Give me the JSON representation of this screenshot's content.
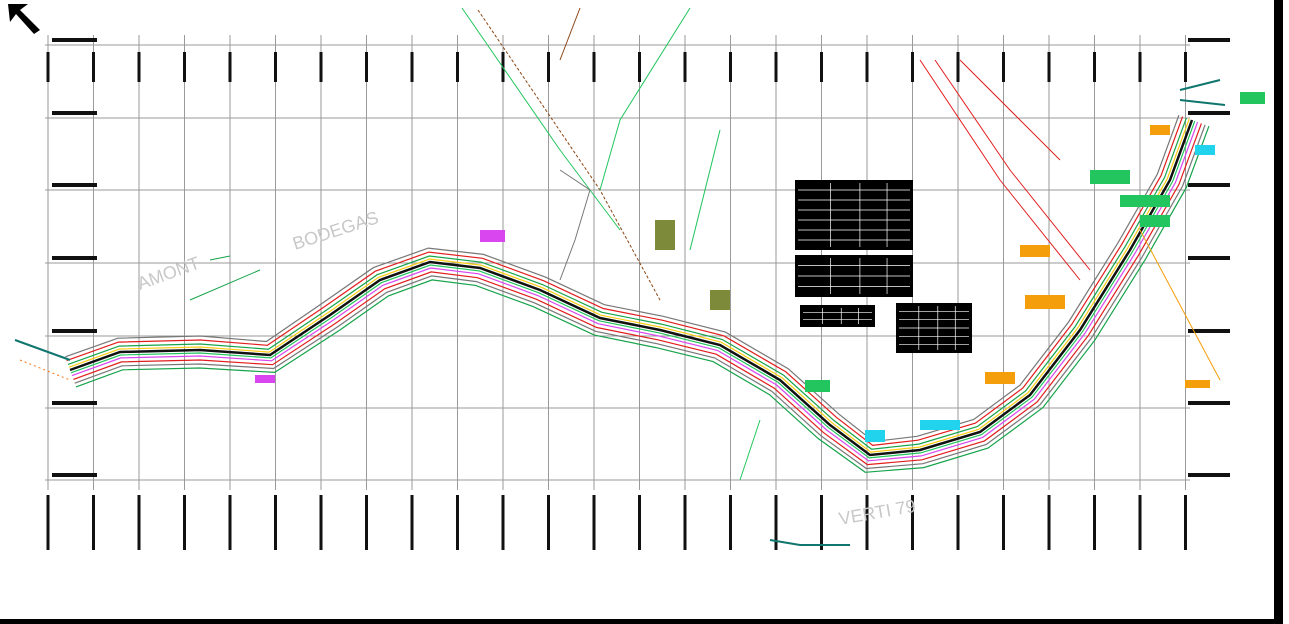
{
  "labels": {
    "amont": "AMONT",
    "bodegas": "BODEGAS",
    "verti": "VERTI 79"
  }
}
